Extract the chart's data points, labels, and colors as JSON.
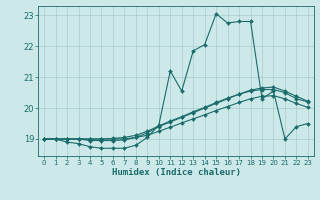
{
  "xlabel": "Humidex (Indice chaleur)",
  "background_color": "#cce8e8",
  "grid_color": "#aacccc",
  "line_color": "#1a6b6b",
  "xlim": [
    -0.5,
    23.5
  ],
  "ylim": [
    18.45,
    23.3
  ],
  "yticks": [
    19,
    20,
    21,
    22,
    23
  ],
  "xticks": [
    0,
    1,
    2,
    3,
    4,
    5,
    6,
    7,
    8,
    9,
    10,
    11,
    12,
    13,
    14,
    15,
    16,
    17,
    18,
    19,
    20,
    21,
    22,
    23
  ],
  "series1_x": [
    0,
    1,
    2,
    3,
    4,
    5,
    6,
    7,
    8,
    9,
    10,
    11,
    12,
    13,
    14,
    15,
    16,
    17,
    18,
    19,
    20,
    21,
    22,
    23
  ],
  "series1_y": [
    19.0,
    19.0,
    18.9,
    18.85,
    18.75,
    18.7,
    18.7,
    18.7,
    18.8,
    19.05,
    19.45,
    21.2,
    20.55,
    21.85,
    22.05,
    23.05,
    22.75,
    22.8,
    22.8,
    20.3,
    20.55,
    19.0,
    19.4,
    19.5
  ],
  "series2_x": [
    0,
    1,
    2,
    3,
    4,
    5,
    6,
    7,
    8,
    9,
    10,
    11,
    12,
    13,
    14,
    15,
    16,
    17,
    18,
    19,
    20,
    21,
    22,
    23
  ],
  "series2_y": [
    19.0,
    19.0,
    19.0,
    19.0,
    18.95,
    18.95,
    18.95,
    18.97,
    19.05,
    19.2,
    19.4,
    19.55,
    19.7,
    19.85,
    20.0,
    20.15,
    20.3,
    20.45,
    20.55,
    20.6,
    20.6,
    20.5,
    20.3,
    20.2
  ],
  "series3_x": [
    0,
    1,
    2,
    3,
    4,
    5,
    6,
    7,
    8,
    9,
    10,
    11,
    12,
    13,
    14,
    15,
    16,
    17,
    18,
    19,
    20,
    21,
    22,
    23
  ],
  "series3_y": [
    19.0,
    19.0,
    19.0,
    19.0,
    19.0,
    19.0,
    19.02,
    19.05,
    19.12,
    19.25,
    19.42,
    19.58,
    19.72,
    19.88,
    20.02,
    20.18,
    20.32,
    20.45,
    20.58,
    20.65,
    20.68,
    20.55,
    20.38,
    20.22
  ],
  "series4_x": [
    0,
    1,
    2,
    3,
    4,
    5,
    6,
    7,
    8,
    9,
    10,
    11,
    12,
    13,
    14,
    15,
    16,
    17,
    18,
    19,
    20,
    21,
    22,
    23
  ],
  "series4_y": [
    19.0,
    19.0,
    19.0,
    19.0,
    19.0,
    19.0,
    19.0,
    19.0,
    19.05,
    19.12,
    19.25,
    19.38,
    19.52,
    19.65,
    19.78,
    19.92,
    20.05,
    20.18,
    20.3,
    20.38,
    20.4,
    20.3,
    20.15,
    20.02
  ]
}
